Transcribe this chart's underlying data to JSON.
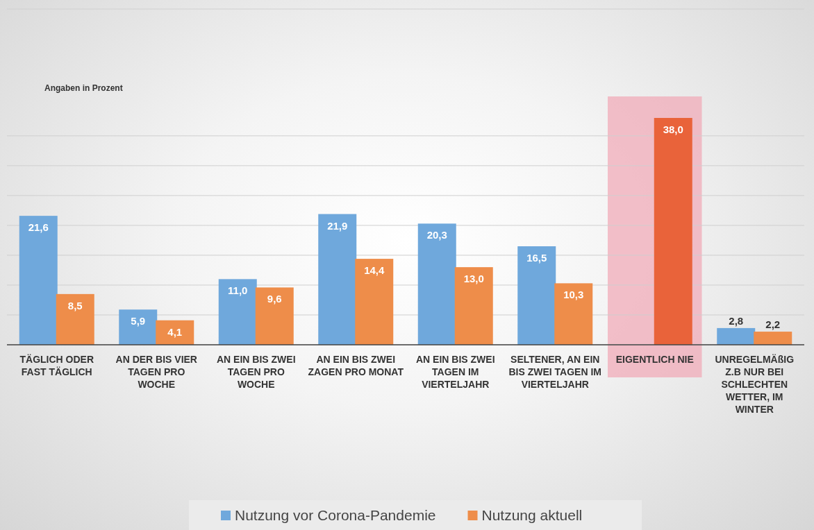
{
  "chart_data": {
    "type": "bar",
    "categories": [
      "TÄGLICH ODER FAST TÄGLICH",
      "AN DER BIS VIER TAGEN PRO WOCHE",
      "AN EIN BIS ZWEI TAGEN PRO WOCHE",
      "AN EIN BIS ZWEI ZAGEN PRO MONAT",
      "AN EIN BIS ZWEI TAGEN IM VIERTELJAHR",
      "SELTENER, AN EIN BIS ZWEI TAGEN IM VIERTELJAHR",
      "EIGENTLICH NIE",
      "UNREGELMÄßIG Z.B NUR BEI SCHLECHTEN WETTER, IM WINTER"
    ],
    "series": [
      {
        "name": "Nutzung vor Corona-Pandemie",
        "color": "#6fa8dc",
        "values": [
          21.6,
          5.9,
          11.0,
          21.9,
          20.3,
          16.5,
          null,
          2.8
        ],
        "value_labels": [
          "21,6",
          "5,9",
          "11,0",
          "21,9",
          "20,3",
          "16,5",
          null,
          "2,8"
        ]
      },
      {
        "name": "Nutzung aktuell",
        "color": "#ee8d4a",
        "colors": [
          "#ee8d4a",
          "#ee8d4a",
          "#ee8d4a",
          "#ee8d4a",
          "#ee8d4a",
          "#ee8d4a",
          "#e9633a",
          "#ee8d4a"
        ],
        "values": [
          8.5,
          4.1,
          9.6,
          14.4,
          13.0,
          10.3,
          38.0,
          2.2
        ],
        "value_labels": [
          "8,5",
          "4,1",
          "9,6",
          "14,4",
          "13,0",
          "10,3",
          "38,0",
          "2,2"
        ]
      }
    ],
    "grid": "y",
    "legend": "bottom",
    "annotations": [
      "Angaben in Prozent"
    ],
    "bands": [
      {
        "axis": "x",
        "from": "EIGENTLICH NIE",
        "to": "EIGENTLICH NIE",
        "color": "#f1a7b5"
      }
    ]
  }
}
